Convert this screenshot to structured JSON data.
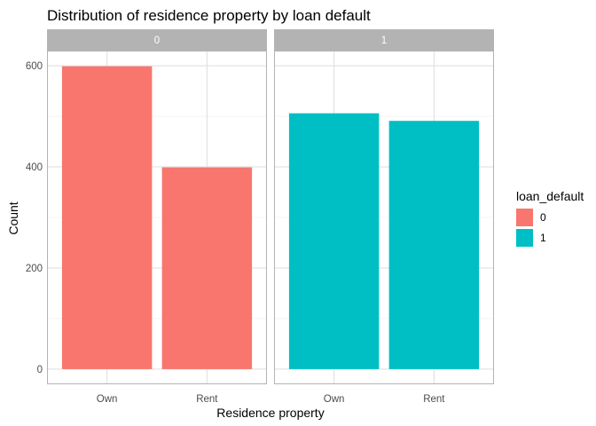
{
  "chart_data": {
    "type": "bar",
    "title": "Distribution of residence property by loan default",
    "xlabel": "Residence property",
    "ylabel": "Count",
    "categories": [
      "Own",
      "Rent"
    ],
    "yticks": [
      0,
      200,
      400,
      600
    ],
    "ylim": [
      -30,
      630
    ],
    "grid": true,
    "legend": {
      "title": "loan_default",
      "placement": "right",
      "entries": [
        {
          "label": "0",
          "color": "#F8766D"
        },
        {
          "label": "1",
          "color": "#00BFC4"
        }
      ]
    },
    "facets": [
      {
        "strip": "0",
        "color": "#F8766D",
        "values": [
          599,
          399
        ]
      },
      {
        "strip": "1",
        "color": "#00BFC4",
        "values": [
          506,
          491
        ]
      }
    ]
  },
  "colors": {
    "strip_background": "#B3B3B3",
    "panel_border": "#B3B3B3",
    "grid_major": "#DEDEDE",
    "grid_minor": "#EEEEEE",
    "tick_text": "#4D4D4D"
  }
}
